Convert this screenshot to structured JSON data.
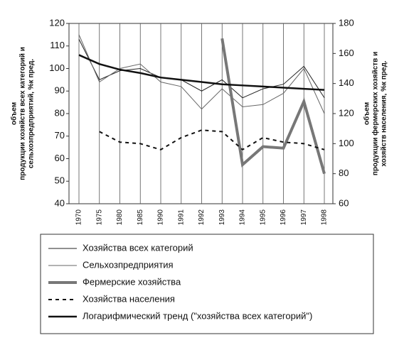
{
  "chart_data": {
    "type": "line",
    "y_label": [
      "объем",
      "продукции хозяйств всех категорий и",
      "сельхозпредприятий, %к пред."
    ],
    "y2_label": [
      "объем",
      "продукции фермерских хозяйств и",
      "хозяйств населения, %к пред."
    ],
    "categories": [
      "1970",
      "1975",
      "1980",
      "1985",
      "1990",
      "1991",
      "1992",
      "1993",
      "1994",
      "1995",
      "1996",
      "1997",
      "1998"
    ],
    "ylim": [
      40,
      120
    ],
    "yticks": [
      40,
      50,
      60,
      70,
      80,
      90,
      100,
      110,
      120
    ],
    "y2lim": [
      60,
      180
    ],
    "y2ticks": [
      60,
      80,
      100,
      120,
      140,
      160,
      180
    ],
    "grid": true,
    "series": [
      {
        "name": "Хозяйства всех категорий",
        "color": "#222222",
        "style": "thin",
        "axis": "y",
        "values": [
          113,
          95,
          99,
          100,
          96,
          95,
          90,
          95,
          87,
          91,
          93,
          101,
          87
        ]
      },
      {
        "name": "Сельхозпредприятия",
        "color": "#666666",
        "style": "thin",
        "axis": "y",
        "values": [
          115,
          94,
          100,
          102,
          94,
          92,
          82,
          91,
          83,
          84,
          89,
          100,
          80
        ]
      },
      {
        "name": "Фермерские хозяйства",
        "color": "#777777",
        "style": "thick",
        "axis": "y2",
        "values": [
          null,
          null,
          null,
          null,
          null,
          null,
          null,
          170,
          86,
          98,
          97,
          128,
          80
        ]
      },
      {
        "name": "Хозяйства населения",
        "color": "#111111",
        "style": "dashed",
        "axis": "y2",
        "values": [
          null,
          108,
          101,
          100,
          96,
          104,
          109,
          108,
          96,
          104,
          101,
          100,
          96
        ]
      },
      {
        "name": "Логарифмический тренд (\"хозяйства всех категорий\")",
        "color": "#111111",
        "style": "bold",
        "axis": "y",
        "values": [
          106,
          102,
          99.5,
          98,
          96,
          95,
          94,
          93,
          92.5,
          92,
          91.5,
          91,
          90.5
        ]
      }
    ]
  }
}
